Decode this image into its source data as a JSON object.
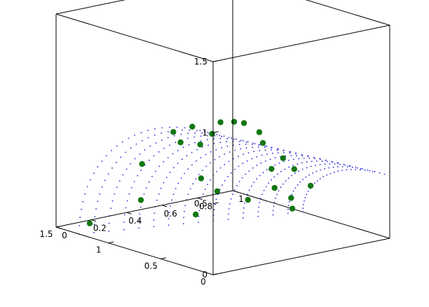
{
  "chart_data": {
    "type": "scatter",
    "title": "",
    "xlabel": "",
    "ylabel": "",
    "zlabel": "",
    "view": "3d",
    "box": true,
    "grid": false,
    "axes": {
      "x": {
        "range": [
          0,
          1.5
        ],
        "ticks": [
          0,
          0.5,
          1,
          1.5
        ],
        "tick_labels": [
          "0",
          "0.5",
          "1",
          "1.5"
        ]
      },
      "y": {
        "range": [
          0,
          1
        ],
        "ticks": [
          0,
          0.2,
          0.4,
          0.6,
          0.8,
          1
        ],
        "tick_labels": [
          "0",
          "0.2",
          "0.4",
          "0.6",
          "0.8",
          "1"
        ]
      },
      "z": {
        "range": [
          0,
          1.5
        ],
        "ticks": [
          0,
          0.5,
          1,
          1.5
        ],
        "tick_labels": [
          "0",
          "0.5",
          "1",
          "1.5"
        ]
      }
    },
    "surface_points": {
      "marker": "dot",
      "color": "#2b2bd6",
      "u_steps": 15,
      "v_steps": 26,
      "description_of_shape": "quarter torus-like surface from y=0 to y=1"
    },
    "series": [
      {
        "marker": "filled-circle",
        "color": "#127712",
        "points": [
          {
            "x": 0.01,
            "y": 0.0,
            "z": 0.99
          },
          {
            "x": 0.3,
            "y": 0.06,
            "z": 0.96
          },
          {
            "x": 0.38,
            "y": 0.0,
            "z": 0.92
          },
          {
            "x": 0.3,
            "y": 0.22,
            "z": 0.95
          },
          {
            "x": 0.53,
            "y": 0.13,
            "z": 0.78
          },
          {
            "x": 0.39,
            "y": 0.35,
            "z": 0.9
          },
          {
            "x": 0.38,
            "y": 0.4,
            "z": 0.88
          },
          {
            "x": 0.78,
            "y": 0.06,
            "z": 0.59
          },
          {
            "x": 0.68,
            "y": 0.33,
            "z": 0.68
          },
          {
            "x": 0.47,
            "y": 0.54,
            "z": 0.76
          },
          {
            "x": 0.52,
            "y": 0.59,
            "z": 0.66
          },
          {
            "x": 0.96,
            "y": 0.16,
            "z": 0.27
          },
          {
            "x": 0.84,
            "y": 0.43,
            "z": 0.38
          },
          {
            "x": 0.53,
            "y": 0.71,
            "z": 0.52
          },
          {
            "x": 0.64,
            "y": 0.71,
            "z": 0.42
          },
          {
            "x": 0.52,
            "y": 0.86,
            "z": 0.29
          },
          {
            "x": 1.28,
            "y": 0.06,
            "z": 0.06
          },
          {
            "x": 1.01,
            "y": 0.5,
            "z": 0.07
          },
          {
            "x": 0.99,
            "y": 0.61,
            "z": 0.21
          },
          {
            "x": 0.95,
            "y": 0.76,
            "z": 0.12
          },
          {
            "x": 0.83,
            "y": 0.84,
            "z": 0.21
          },
          {
            "x": 0.79,
            "y": 0.91,
            "z": 0.13
          },
          {
            "x": 0.76,
            "y": 0.91,
            "z": 0.34
          },
          {
            "x": 0.88,
            "y": 0.97,
            "z": 0.02
          }
        ]
      }
    ]
  }
}
